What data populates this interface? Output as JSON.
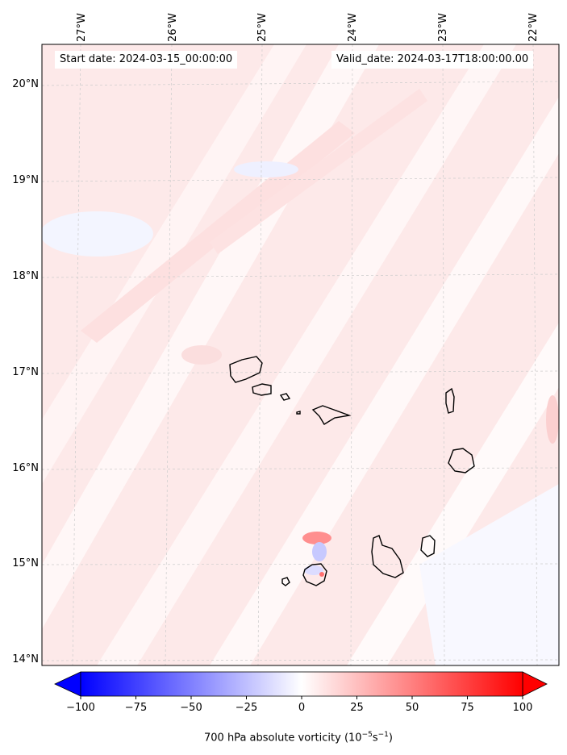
{
  "header": {
    "start_date": "Start date: 2024-03-15_00:00:00",
    "valid_date": "Valid_date: 2024-03-17T18:00:00.00"
  },
  "map": {
    "lon_labels": [
      "27°W",
      "26°W",
      "25°W",
      "24°W",
      "23°W",
      "22°W"
    ],
    "lat_labels": [
      "20°N",
      "19°N",
      "18°N",
      "17°N",
      "16°N",
      "15°N",
      "14°N"
    ],
    "gridlines": true,
    "field": "700 hPa absolute vorticity",
    "features": [
      "Cape Verde islands coastline",
      "vorticity dipole near Fogo island"
    ]
  },
  "colorbar": {
    "ticks": [
      "−100",
      "−75",
      "−50",
      "−25",
      "0",
      "25",
      "50",
      "75",
      "100"
    ],
    "label_main": "700 hPa absolute vorticity (10",
    "label_exp1": "−5",
    "label_mid": "s",
    "label_exp2": "−1",
    "label_end": ")",
    "colors": {
      "min": "#0000ff",
      "mid": "#ffffff",
      "max": "#ff0000"
    },
    "range": [
      -100,
      100
    ]
  }
}
